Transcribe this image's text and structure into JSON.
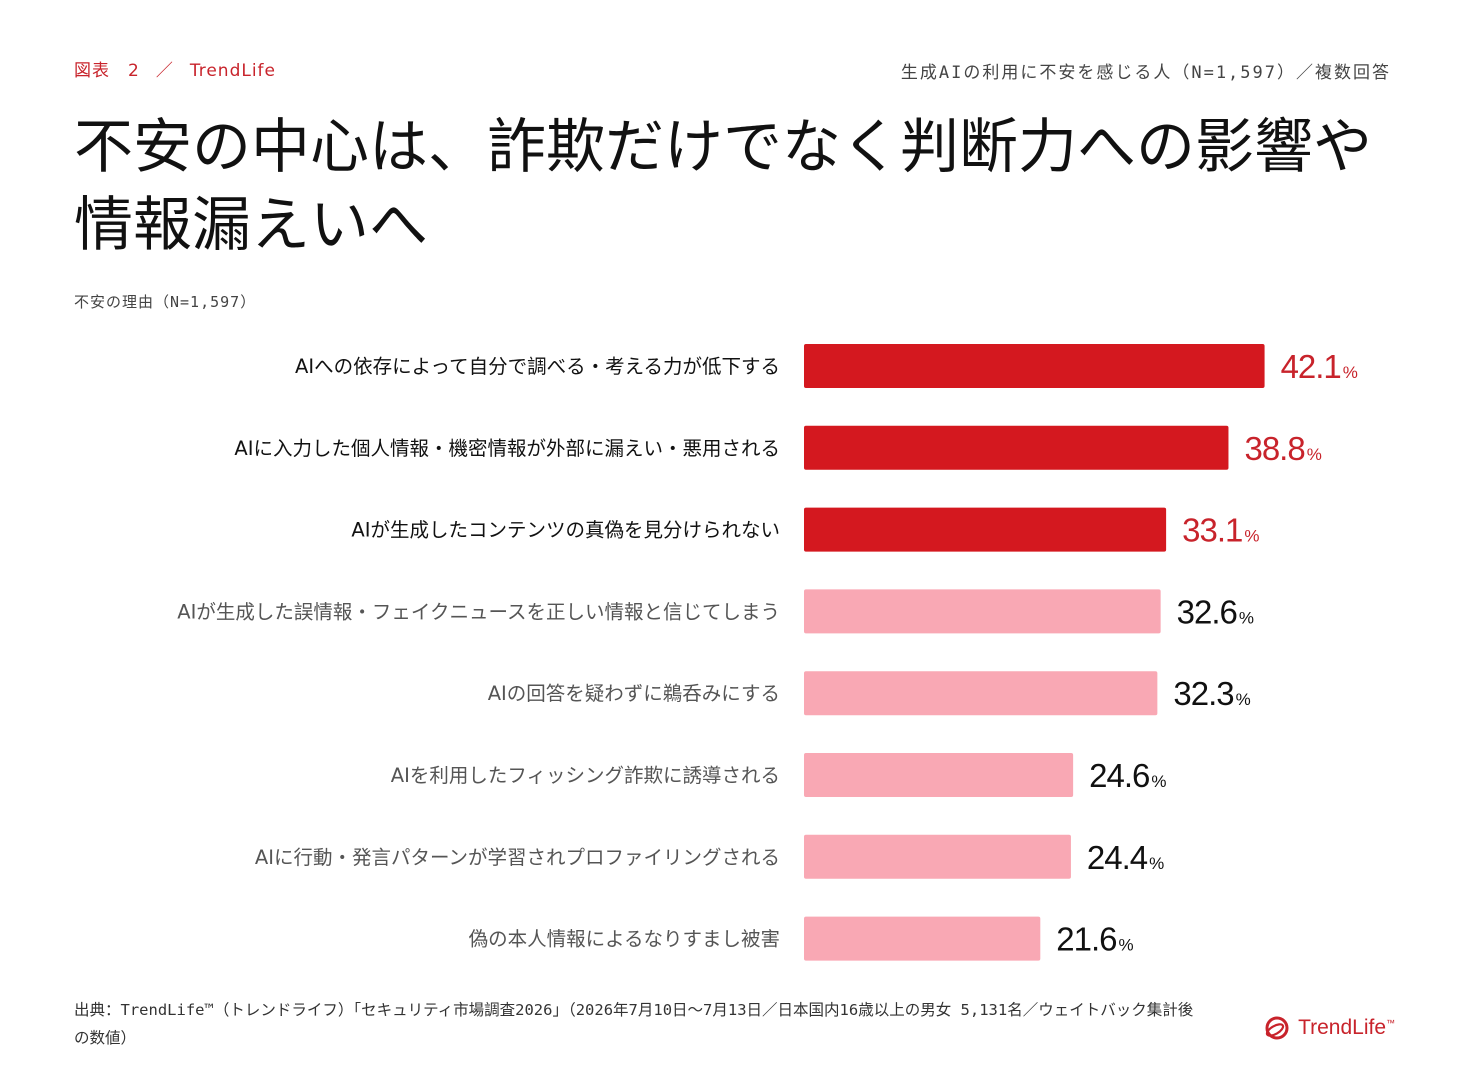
{
  "header": {
    "figure_label": "図表　2",
    "separator": "／",
    "brand": "TrendLife",
    "survey_note": "生成AIの利用に不安を感じる人（N=1,597）／複数回答"
  },
  "headline": "不安の中心は、詐欺だけでなく判断力への影響や情報漏えいへ",
  "chart_data": {
    "type": "bar",
    "orientation": "horizontal",
    "title": "不安の理由（N=1,597）",
    "unit": "%",
    "categories": [
      "AIへの依存によって自分で調べる・考える力が低下する",
      "AIに入力した個人情報・機密情報が外部に漏えい・悪用される",
      "AIが生成したコンテンツの真偽を見分けられない",
      "AIが生成した誤情報・フェイクニュースを正しい情報と信じてしまう",
      "AIの回答を疑わずに鵜呑みにする",
      "AIを利用したフィッシング詐欺に誘導される",
      "AIに行動・発言パターンが学習されプロファイリングされる",
      "偽の本人情報によるなりすまし被害"
    ],
    "values": [
      42.1,
      38.8,
      33.1,
      32.6,
      32.3,
      24.6,
      24.4,
      21.6
    ],
    "value_labels": [
      "42.1",
      "38.8",
      "33.1",
      "32.6",
      "32.3",
      "24.6",
      "24.4",
      "21.6"
    ],
    "highlighted": [
      true,
      true,
      true,
      false,
      false,
      false,
      false,
      false
    ],
    "xlim": [
      0,
      50
    ],
    "grid": false,
    "legend": "none",
    "colors": {
      "highlight_bar": "#d4181f",
      "normal_bar": "#f9a8b4",
      "highlight_label": "#c8232b",
      "normal_label": "#111111",
      "highlight_text": "#111111",
      "normal_text": "#555555"
    }
  },
  "footer": {
    "source": "出典：TrendLife™（トレンドライフ）「セキュリティ市場調査2026」（2026年7月10日〜7月13日／日本国内16歳以上の男女 5,131名／ウェイトバック集計後の数値）",
    "brand": "TrendLife",
    "brand_tm": "™",
    "logo_icon": "trendlife-logo-icon"
  }
}
